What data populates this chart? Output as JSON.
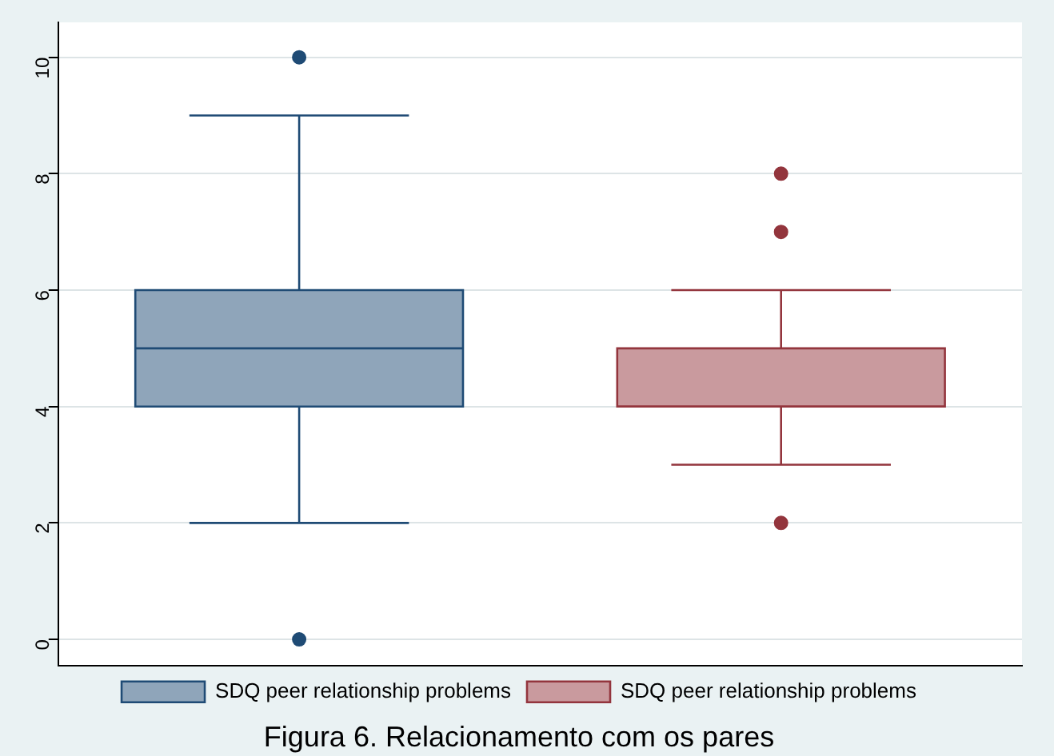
{
  "chart_data": {
    "type": "box",
    "title": "Figura 6. Relacionamento com os pares",
    "categories": [
      null
    ],
    "ylim": [
      -0.45,
      10.6
    ],
    "yticks": [
      0,
      2,
      4,
      6,
      8,
      10
    ],
    "grid": "y",
    "legend": "bottom",
    "tick_labels": "y",
    "series": [
      {
        "name": "SDQ peer relationship problems",
        "color": "#8fa5ba",
        "boxes": [
          {
            "low": 2,
            "q1": 4,
            "median": 5,
            "q3": 6,
            "high": 9,
            "outliers": [
              10,
              0
            ]
          }
        ]
      },
      {
        "name": "SDQ peer relationship problems",
        "color": "#c99a9e",
        "boxes": [
          {
            "low": 3,
            "q1": 4,
            "median": 4,
            "q3": 5,
            "high": 6,
            "outliers": [
              8,
              7,
              2
            ]
          }
        ]
      }
    ]
  }
}
